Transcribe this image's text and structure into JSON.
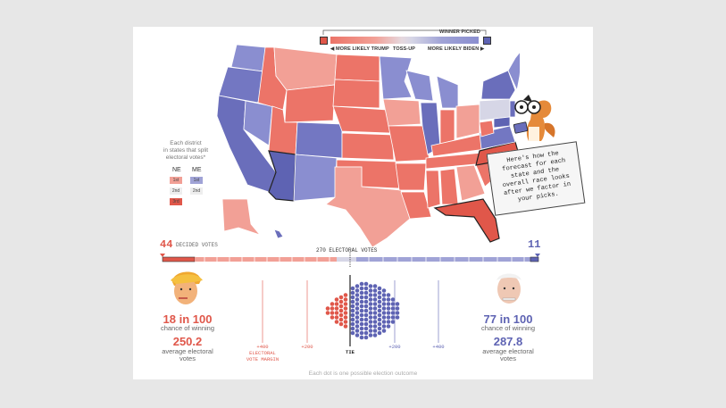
{
  "legend": {
    "winner_picked": "WINNER PICKED",
    "more_likely_trump": "◀ MORE LIKELY TRUMP",
    "toss_up": "TOSS-UP",
    "more_likely_biden": "MORE LIKELY BIDEN ▶"
  },
  "split": {
    "heading": [
      "Each district",
      "in states that split",
      "electoral votes*"
    ],
    "ne": "NE",
    "me": "ME",
    "ne_districts": [
      "1st",
      "2nd",
      "3rd"
    ],
    "me_districts": [
      "1st",
      "2nd"
    ]
  },
  "note": [
    "Here's how the",
    "forecast for each",
    "state and the",
    "overall race looks",
    "after we factor in",
    "your picks."
  ],
  "bar": {
    "trump_decided": "44",
    "decided_label": "DECIDED VOTES",
    "biden_decided": "11",
    "center_label": "270 ELECTORAL VOTES"
  },
  "trump": {
    "chance": "18 in 100",
    "chance_label": "chance of winning",
    "avg": "250.2",
    "avg_label": [
      "average electoral",
      "votes"
    ]
  },
  "biden": {
    "chance": "77 in 100",
    "chance_label": "chance of winning",
    "avg": "287.8",
    "avg_label": [
      "average electoral",
      "votes"
    ]
  },
  "axis": {
    "left_400": [
      "+400",
      "ELECTORAL",
      "VOTE MARGIN"
    ],
    "left_200": "+200",
    "tie": "TIE",
    "right_200": "+200",
    "right_400": "+400"
  },
  "footer": "Each dot is one possible election outcome",
  "colors": {
    "trump_dark": "#e0574a",
    "trump_light": "#f2a096",
    "toss_up": "#d8d8e6",
    "biden_light": "#a0a3d6",
    "biden_dark": "#5e63b3"
  }
}
